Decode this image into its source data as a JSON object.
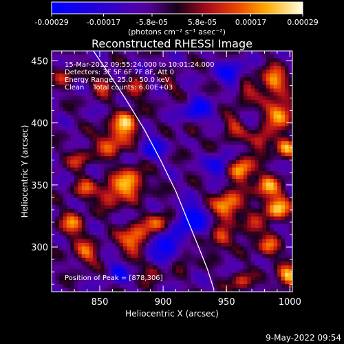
{
  "chart_data": {
    "type": "heatmap",
    "title": "Reconstructed RHESSI Image",
    "xlabel": "Heliocentric X (arcsec)",
    "ylabel": "Heliocentric Y (arcsec)",
    "xlim": [
      812,
      1002
    ],
    "ylim": [
      264,
      458
    ],
    "x_ticks": [
      850,
      900,
      950,
      1000
    ],
    "y_ticks": [
      300,
      350,
      400,
      450
    ],
    "colorbar": {
      "range": [
        -0.00029,
        0.00029
      ],
      "tick_values": [
        -0.00029,
        -0.00017,
        -5.8e-05,
        5.8e-05,
        0.00017,
        0.00029
      ],
      "tick_labels": [
        "-0.00029",
        "-0.00017",
        "-5.8e-05",
        "5.8e-05",
        "0.00017",
        "0.00029"
      ],
      "unit_label": "(photons cm⁻² s⁻¹ asec⁻²)",
      "colormap": "rhessi-bluered"
    },
    "annotations": [
      "15-Mar-2012 09:55:24.000 to 10:01:24.000",
      "Detectors: 3F 5F 6F 7F 8F, Att 0",
      "Energy Range: 25.0 - 50.0 keV",
      "Clean    Total counts: 6.00E+03",
      "Position of Peak = [878,306]"
    ],
    "peak": {
      "x": 878,
      "y": 306
    },
    "limb": [
      [
        845,
        458
      ],
      [
        857,
        440
      ],
      [
        870,
        420
      ],
      [
        885,
        395
      ],
      [
        898,
        370
      ],
      [
        910,
        345
      ],
      [
        920,
        320
      ],
      [
        928,
        300
      ],
      [
        935,
        282
      ],
      [
        940,
        266
      ]
    ],
    "hotspots": [
      {
        "x": 871,
        "y": 399,
        "a": 0.00029,
        "r": 7
      },
      {
        "x": 859,
        "y": 384,
        "a": 0.00022,
        "r": 8
      },
      {
        "x": 874,
        "y": 352,
        "a": 0.00029,
        "r": 8
      },
      {
        "x": 858,
        "y": 342,
        "a": 0.00021,
        "r": 7
      },
      {
        "x": 838,
        "y": 347,
        "a": 0.00017,
        "r": 6
      },
      {
        "x": 834,
        "y": 371,
        "a": 0.00016,
        "r": 6
      },
      {
        "x": 828,
        "y": 318,
        "a": 0.00021,
        "r": 7
      },
      {
        "x": 839,
        "y": 295,
        "a": 0.0002,
        "r": 7
      },
      {
        "x": 878,
        "y": 306,
        "a": 0.00029,
        "r": 8
      },
      {
        "x": 897,
        "y": 318,
        "a": 0.00022,
        "r": 7
      },
      {
        "x": 892,
        "y": 282,
        "a": 0.00017,
        "r": 6
      },
      {
        "x": 915,
        "y": 292,
        "a": 0.00014,
        "r": 6
      },
      {
        "x": 823,
        "y": 438,
        "a": 0.00014,
        "r": 6
      },
      {
        "x": 853,
        "y": 431,
        "a": 0.00017,
        "r": 6
      },
      {
        "x": 878,
        "y": 426,
        "a": 0.00014,
        "r": 6
      },
      {
        "x": 955,
        "y": 396,
        "a": 0.00017,
        "r": 6
      },
      {
        "x": 965,
        "y": 424,
        "a": 0.00016,
        "r": 6
      },
      {
        "x": 987,
        "y": 434,
        "a": 0.00029,
        "r": 7
      },
      {
        "x": 992,
        "y": 408,
        "a": 0.00029,
        "r": 8
      },
      {
        "x": 978,
        "y": 386,
        "a": 0.00021,
        "r": 6
      },
      {
        "x": 997,
        "y": 380,
        "a": 0.00022,
        "r": 6
      },
      {
        "x": 962,
        "y": 362,
        "a": 0.00029,
        "r": 7
      },
      {
        "x": 982,
        "y": 348,
        "a": 0.00024,
        "r": 7
      },
      {
        "x": 990,
        "y": 331,
        "a": 0.00029,
        "r": 7
      },
      {
        "x": 951,
        "y": 333,
        "a": 0.00029,
        "r": 8
      },
      {
        "x": 970,
        "y": 315,
        "a": 0.00017,
        "r": 6
      },
      {
        "x": 945,
        "y": 306,
        "a": 0.00021,
        "r": 6
      },
      {
        "x": 983,
        "y": 300,
        "a": 0.00021,
        "r": 6
      },
      {
        "x": 998,
        "y": 276,
        "a": 0.00029,
        "r": 6
      },
      {
        "x": 962,
        "y": 272,
        "a": 0.00017,
        "r": 6
      },
      {
        "x": 922,
        "y": 392,
        "a": 0.0001,
        "r": 5
      },
      {
        "x": 905,
        "y": 430,
        "a": 9e-05,
        "r": 5
      },
      {
        "x": 900,
        "y": 300,
        "a": -0.00029,
        "r": 9
      },
      {
        "x": 922,
        "y": 322,
        "a": -0.00029,
        "r": 8
      },
      {
        "x": 927,
        "y": 410,
        "a": -0.00022,
        "r": 7
      },
      {
        "x": 953,
        "y": 440,
        "a": -0.0002,
        "r": 7
      },
      {
        "x": 892,
        "y": 380,
        "a": -0.00017,
        "r": 7
      },
      {
        "x": 944,
        "y": 365,
        "a": -0.00021,
        "r": 6
      },
      {
        "x": 865,
        "y": 280,
        "a": -0.00017,
        "r": 6
      }
    ]
  },
  "footer": {
    "timestamp": "9-May-2022 09:54"
  }
}
